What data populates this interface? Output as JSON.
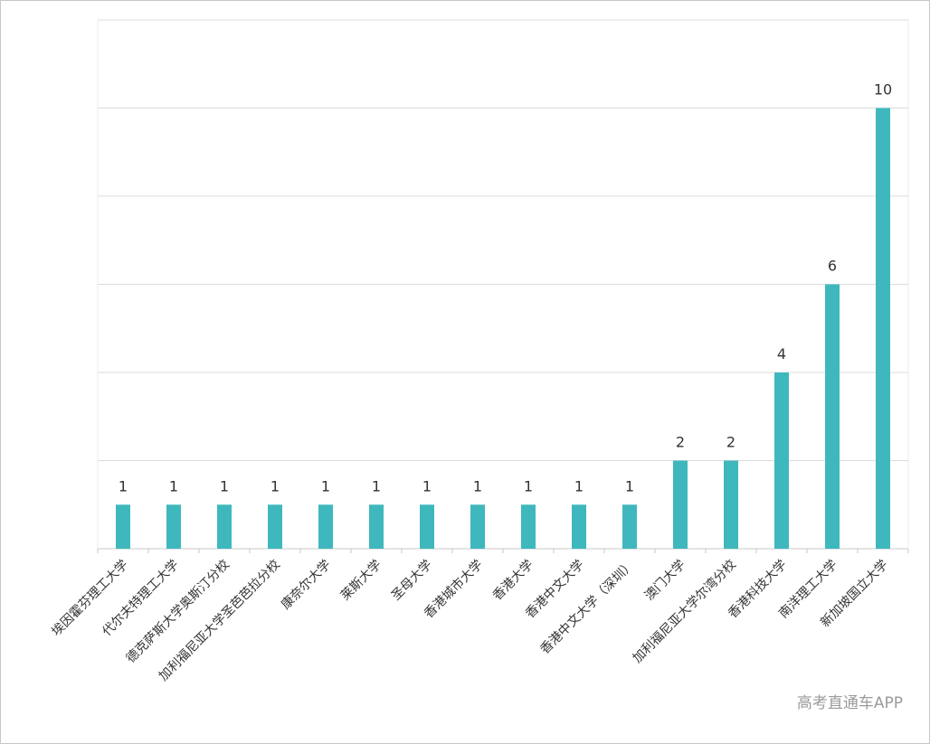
{
  "chart_data": {
    "type": "bar",
    "categories": [
      "埃因霍芬理工大学",
      "代尔夫特理工大学",
      "德克萨斯大学奥斯汀分校",
      "加利福尼亚大学圣芭芭拉分校",
      "康奈尔大学",
      "莱斯大学",
      "圣母大学",
      "香港城市大学",
      "香港大学",
      "香港中文大学",
      "香港中文大学（深圳）",
      "澳门大学",
      "加利福尼亚大学尔湾分校",
      "香港科技大学",
      "南洋理工大学",
      "新加坡国立大学"
    ],
    "values": [
      1,
      1,
      1,
      1,
      1,
      1,
      1,
      1,
      1,
      1,
      1,
      2,
      2,
      4,
      6,
      10
    ],
    "color": "#3fb8bd",
    "ylim": [
      0,
      12
    ],
    "yticks": [
      0,
      2,
      4,
      6,
      8,
      10,
      12
    ],
    "grid": true,
    "watermark": "高考直通车APP"
  }
}
